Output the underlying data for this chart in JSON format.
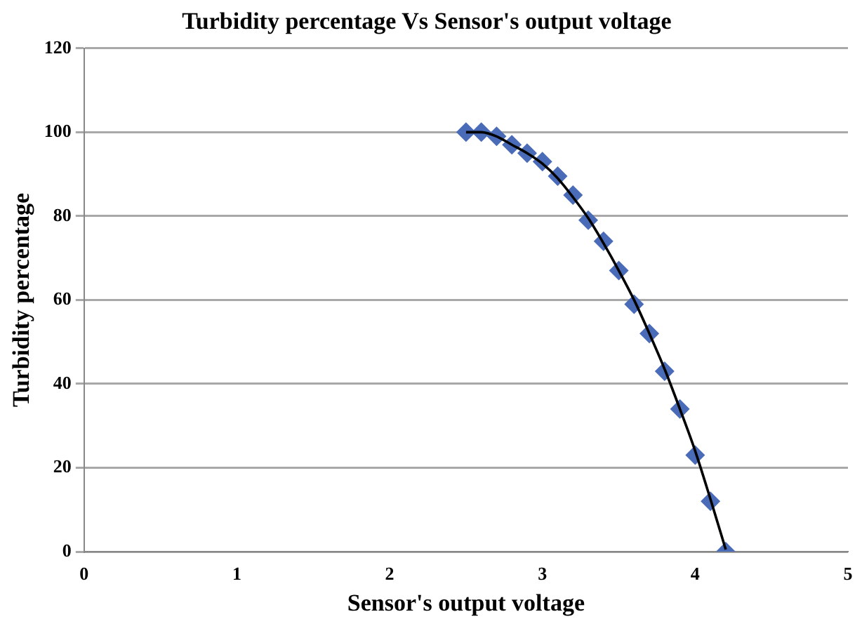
{
  "chart_data": {
    "type": "scatter",
    "title": "Turbidity percentage Vs Sensor's output voltage",
    "xlabel": "Sensor's output voltage",
    "ylabel": "Turbidity percentage",
    "xlim": [
      0,
      5
    ],
    "xticks": [
      0,
      1,
      2,
      3,
      4,
      5
    ],
    "ylim": [
      0,
      120
    ],
    "yticks": [
      0,
      20,
      40,
      60,
      80,
      100,
      120
    ],
    "grid": "y",
    "marker": "diamond",
    "series": [
      {
        "color": "#4a6cb8",
        "x": [
          2.5,
          2.6,
          2.7,
          2.8,
          2.9,
          3.0,
          3.1,
          3.2,
          3.3,
          3.4,
          3.5,
          3.6,
          3.7,
          3.8,
          3.9,
          4.0,
          4.1,
          4.2
        ],
        "values": [
          100,
          100,
          99,
          97,
          95,
          93,
          89.5,
          85,
          79,
          74,
          67,
          59,
          52,
          43,
          34,
          23,
          12,
          0
        ]
      },
      {
        "type": "line",
        "color": "#000000",
        "marker": "none",
        "line_style": "solid",
        "x": [
          2.5,
          2.6,
          2.7,
          2.8,
          2.9,
          3.0,
          3.1,
          3.2,
          3.3,
          3.4,
          3.5,
          3.6,
          3.7,
          3.8,
          3.9,
          4.0,
          4.1,
          4.2
        ],
        "values": [
          100,
          100,
          99,
          97,
          95,
          92.5,
          89,
          84.5,
          79.5,
          73.5,
          67,
          60,
          52,
          43.5,
          34,
          24,
          12.5,
          0.5
        ]
      }
    ]
  }
}
